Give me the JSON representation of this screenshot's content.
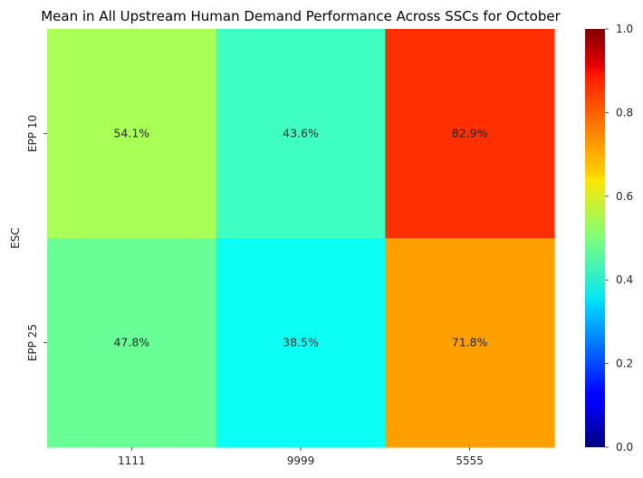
{
  "chart_data": {
    "type": "heatmap",
    "title": "Mean in All Upstream Human Demand Performance Across SSCs for October",
    "xlabel": "",
    "ylabel": "ESC",
    "x_categories": [
      "1111",
      "9999",
      "5555"
    ],
    "y_categories": [
      "EPP 10",
      "EPP 25"
    ],
    "values": [
      [
        0.541,
        0.436,
        0.829
      ],
      [
        0.478,
        0.385,
        0.718
      ]
    ],
    "cell_labels": [
      [
        "54.1%",
        "43.6%",
        "82.9%"
      ],
      [
        "47.8%",
        "38.5%",
        "71.8%"
      ]
    ],
    "colormap": "jet",
    "vmin": 0.0,
    "vmax": 1.0,
    "colorbar_ticks": [
      "0.0",
      "0.2",
      "0.4",
      "0.6",
      "0.8",
      "1.0"
    ],
    "colorbar_tick_values": [
      0.0,
      0.2,
      0.4,
      0.6,
      0.8,
      1.0
    ]
  }
}
